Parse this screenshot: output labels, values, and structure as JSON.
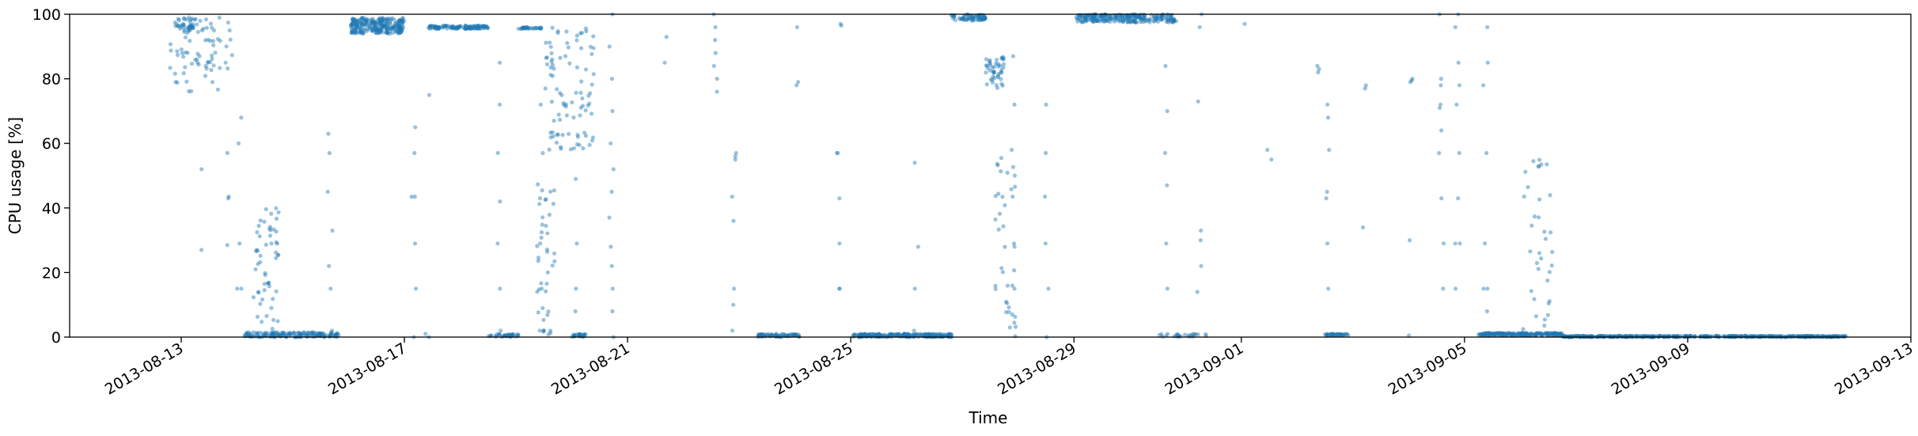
{
  "chart_data": {
    "type": "scatter",
    "title": "",
    "xlabel": "Time",
    "ylabel": "CPU usage [%]",
    "xlim": [
      "2013-08-11",
      "2013-09-13"
    ],
    "ylim": [
      0,
      100
    ],
    "x_ticks": [
      "2013-08-13",
      "2013-08-17",
      "2013-08-21",
      "2013-08-25",
      "2013-08-29",
      "2013-09-01",
      "2013-09-05",
      "2013-09-09",
      "2013-09-13"
    ],
    "y_ticks": [
      "0",
      "20",
      "40",
      "60",
      "80",
      "100"
    ],
    "grid": false,
    "legend": "none",
    "marker_color": "#1f77b4",
    "marker_alpha": 0.45,
    "clusters": [
      {
        "x_from": "2013-08-12T21:00",
        "x_to": "2013-08-13T07:00",
        "y_from": 95,
        "y_to": 99,
        "points": 35
      },
      {
        "x_from": "2013-08-12T19:00",
        "x_to": "2013-08-13T22:00",
        "y_from": 76,
        "y_to": 99,
        "points": 70
      },
      {
        "x_from": "2013-08-14T03:00",
        "x_to": "2013-08-15T20:00",
        "y_from": 0,
        "y_to": 1.5,
        "points": 160
      },
      {
        "x_from": "2013-08-14T07:00",
        "x_to": "2013-08-14T18:00",
        "y_from": 0,
        "y_to": 40,
        "points": 55
      },
      {
        "x_from": "2013-08-16T01:00",
        "x_to": "2013-08-17T00:00",
        "y_from": 94,
        "y_to": 99,
        "points": 260
      },
      {
        "x_from": "2013-08-17T10:00",
        "x_to": "2013-08-18T12:00",
        "y_from": 95.5,
        "y_to": 96.5,
        "points": 120
      },
      {
        "x_from": "2013-08-18T12:00",
        "x_to": "2013-08-19T01:00",
        "y_from": 0,
        "y_to": 1,
        "points": 35
      },
      {
        "x_from": "2013-08-19T01:00",
        "x_to": "2013-08-19T11:00",
        "y_from": 95.5,
        "y_to": 96,
        "points": 30
      },
      {
        "x_from": "2013-08-19T12:00",
        "x_to": "2013-08-20T10:00",
        "y_from": 58,
        "y_to": 96,
        "points": 90
      },
      {
        "x_from": "2013-08-19T09:00",
        "x_to": "2013-08-19T17:00",
        "y_from": 0,
        "y_to": 48,
        "points": 40
      },
      {
        "x_from": "2013-08-20T00:00",
        "x_to": "2013-08-20T06:00",
        "y_from": 0,
        "y_to": 1,
        "points": 25
      },
      {
        "x_from": "2013-08-23T08:00",
        "x_to": "2013-08-24T02:00",
        "y_from": 0,
        "y_to": 1,
        "points": 70
      },
      {
        "x_from": "2013-08-25T01:00",
        "x_to": "2013-08-26T20:00",
        "y_from": 0,
        "y_to": 1,
        "points": 220
      },
      {
        "x_from": "2013-08-26T19:00",
        "x_to": "2013-08-27T10:00",
        "y_from": 98,
        "y_to": 100,
        "points": 70
      },
      {
        "x_from": "2013-08-27T10:00",
        "x_to": "2013-08-27T18:00",
        "y_from": 77,
        "y_to": 87,
        "points": 45
      },
      {
        "x_from": "2013-08-27T14:00",
        "x_to": "2013-08-27T23:00",
        "y_from": 0,
        "y_to": 58,
        "points": 35
      },
      {
        "x_from": "2013-08-29T01:00",
        "x_to": "2013-08-30T20:00",
        "y_from": 97.5,
        "y_to": 100,
        "points": 240
      },
      {
        "x_from": "2013-08-30T12:00",
        "x_to": "2013-08-31T10:00",
        "y_from": 0,
        "y_to": 1,
        "points": 25
      },
      {
        "x_from": "2013-09-02T12:00",
        "x_to": "2013-09-02T22:00",
        "y_from": 0.5,
        "y_to": 1,
        "points": 40
      },
      {
        "x_from": "2013-09-05T06:00",
        "x_to": "2013-09-06T18:00",
        "y_from": 0.5,
        "y_to": 1.3,
        "points": 220
      },
      {
        "x_from": "2013-09-06T18:00",
        "x_to": "2013-09-11T20:00",
        "y_from": 0,
        "y_to": 0.4,
        "points": 520
      },
      {
        "x_from": "2013-09-06T01:00",
        "x_to": "2013-09-06T14:00",
        "y_from": 0,
        "y_to": 57,
        "points": 35
      }
    ],
    "columns": [
      {
        "x": "2013-08-13T08:00",
        "points": [
          52,
          27,
          85
        ]
      },
      {
        "x": "2013-08-13T20:00",
        "points": [
          43.5,
          57,
          43,
          28.5,
          95,
          85
        ]
      },
      {
        "x": "2013-08-14T01:00",
        "points": [
          15,
          15,
          29,
          60,
          68
        ]
      },
      {
        "x": "2013-08-15T16:00",
        "points": [
          45,
          33,
          22,
          15,
          57,
          63,
          2
        ]
      },
      {
        "x": "2013-08-17T04:00",
        "points": [
          43.5,
          43.5,
          29,
          15,
          65,
          57,
          0
        ]
      },
      {
        "x": "2013-08-17T10:00",
        "points": [
          75,
          0,
          1
        ]
      },
      {
        "x": "2013-08-18T17:00",
        "points": [
          85,
          72,
          57,
          42,
          29,
          15,
          2
        ]
      },
      {
        "x": "2013-08-19T11:00",
        "points": [
          72,
          57,
          43,
          29,
          15,
          2
        ]
      },
      {
        "x": "2013-08-20T02:00",
        "points": [
          49,
          15,
          8,
          29
        ]
      },
      {
        "x": "2013-08-20T17:00",
        "points": [
          0,
          8,
          15,
          22,
          28,
          37,
          45,
          52,
          60,
          70,
          80,
          90,
          100
        ]
      },
      {
        "x": "2013-08-21T16:00",
        "points": [
          85,
          93
        ]
      },
      {
        "x": "2013-08-22T14:00",
        "points": [
          100,
          96,
          92,
          88,
          84,
          80,
          76
        ]
      },
      {
        "x": "2013-08-22T22:00",
        "points": [
          57,
          56,
          55,
          43.5,
          36,
          15,
          10,
          2
        ]
      },
      {
        "x": "2013-08-24T01:00",
        "points": [
          78,
          79,
          96
        ]
      },
      {
        "x": "2013-08-24T19:00",
        "points": [
          96.5,
          57,
          57,
          43,
          29,
          15,
          15,
          97
        ]
      },
      {
        "x": "2013-08-26T04:00",
        "points": [
          54,
          28,
          15,
          2
        ]
      },
      {
        "x": "2013-08-27T22:00",
        "points": [
          72,
          58,
          43.5,
          29,
          15,
          87,
          7,
          28
        ]
      },
      {
        "x": "2013-08-28T12:00",
        "points": [
          72,
          57,
          43.5,
          29,
          15,
          0
        ]
      },
      {
        "x": "2013-08-30T16:00",
        "points": [
          84,
          70,
          57,
          47,
          29,
          15,
          100
        ]
      },
      {
        "x": "2013-08-31T06:00",
        "points": [
          73,
          30,
          33,
          22,
          14,
          96,
          100
        ]
      },
      {
        "x": "2013-09-01T02:00",
        "points": [
          97
        ]
      },
      {
        "x": "2013-09-01T12:00",
        "points": [
          55,
          58
        ]
      },
      {
        "x": "2013-09-02T09:00",
        "points": [
          82,
          83,
          84
        ]
      },
      {
        "x": "2013-09-02T13:00",
        "points": [
          72,
          68,
          43,
          29,
          15,
          58,
          45
        ]
      },
      {
        "x": "2013-09-03T05:00",
        "points": [
          78,
          77,
          34
        ]
      },
      {
        "x": "2013-09-04T01:00",
        "points": [
          79,
          79.5,
          80,
          30,
          0.5
        ]
      },
      {
        "x": "2013-09-04T14:00",
        "points": [
          80,
          78,
          72,
          57,
          43,
          29,
          15,
          64,
          71,
          100
        ]
      },
      {
        "x": "2013-09-04T21:00",
        "points": [
          96,
          85,
          78,
          72,
          57,
          43,
          29,
          29,
          15,
          100
        ]
      },
      {
        "x": "2013-09-05T09:00",
        "points": [
          78,
          85,
          96,
          57,
          29,
          15,
          15,
          8
        ]
      }
    ]
  }
}
